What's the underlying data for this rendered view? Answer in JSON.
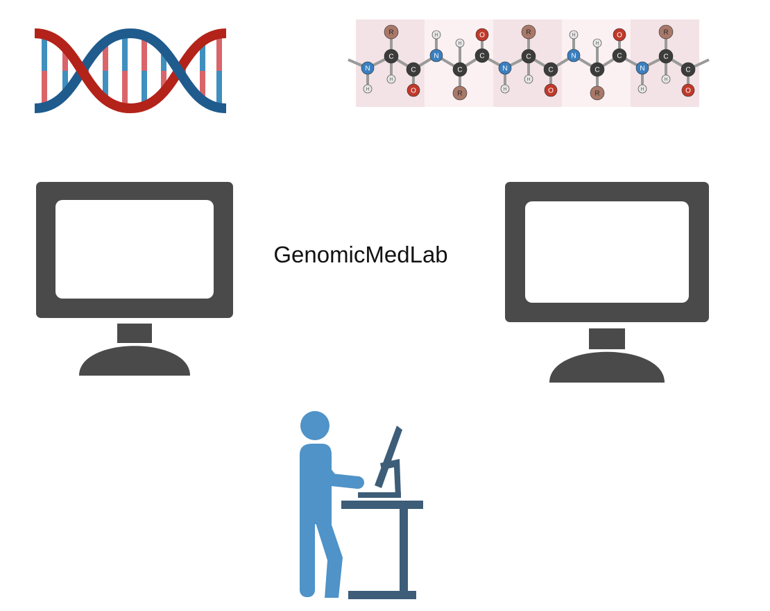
{
  "title": "GenomicMedLab",
  "icons": {
    "dna": "dna-double-helix-icon",
    "peptide": "peptide-chain-diagram",
    "monitor_left": "computer-monitor-icon",
    "monitor_right": "computer-monitor-icon",
    "worker": "person-at-standing-desk-icon"
  },
  "peptide": {
    "atom_labels": [
      "N",
      "C",
      "C",
      "O",
      "H",
      "R"
    ]
  },
  "colors": {
    "dna_red": "#b3231a",
    "dna_blue": "#1f5b8d",
    "monitor": "#4a4a4a",
    "person": "#4f93c8",
    "desk": "#3d5d78",
    "atom_carbon": "#3c3c3c",
    "atom_nitrogen": "#3a7fbf",
    "atom_oxygen": "#c0392b",
    "atom_r": "#a87869",
    "residue_bg": "#f3e3e6"
  }
}
